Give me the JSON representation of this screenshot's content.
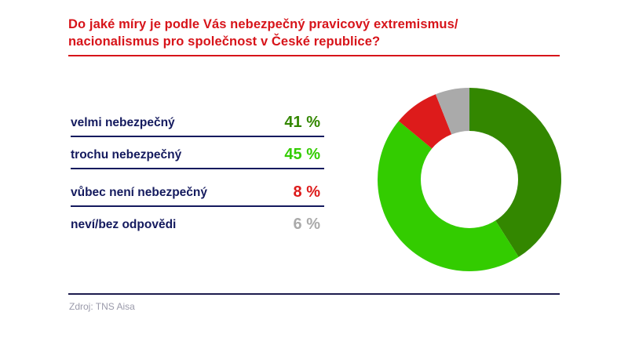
{
  "title": {
    "line1": "Do jaké míry je podle Vás nebezpečný pravicový extremismus/",
    "line2": "nacionalismus pro společnost v České republice?"
  },
  "legend": [
    {
      "label": "velmi nebezpečný",
      "value": "41 %",
      "color": "#338700"
    },
    {
      "label": "trochu nebezpečný",
      "value": "45 %",
      "color": "#33cc00"
    },
    {
      "label": "vůbec není nebezpečný",
      "value": "8 %",
      "color": "#dd1b1b"
    },
    {
      "label": "neví/bez odpovědi",
      "value": "6 %",
      "color": "#aaaaaa"
    }
  ],
  "source": "Zdroj: TNS Aisa",
  "colors": {
    "title": "#d7141a",
    "label": "#141a5e",
    "rule": "#141a5e"
  },
  "chart_data": {
    "type": "pie",
    "subtype": "donut",
    "title": "Do jaké míry je podle Vás nebezpečný pravicový extremismus/nacionalismus pro společnost v České republice?",
    "categories": [
      "velmi nebezpečný",
      "trochu nebezpečný",
      "vůbec není nebezpečný",
      "neví/bez odpovědi"
    ],
    "values": [
      41,
      45,
      8,
      6
    ],
    "unit": "%",
    "colors": [
      "#338700",
      "#33cc00",
      "#dd1b1b",
      "#aaaaaa"
    ],
    "start_angle": "12 o'clock, clockwise",
    "legend_position": "left",
    "source": "Zdroj: TNS Aisa"
  }
}
